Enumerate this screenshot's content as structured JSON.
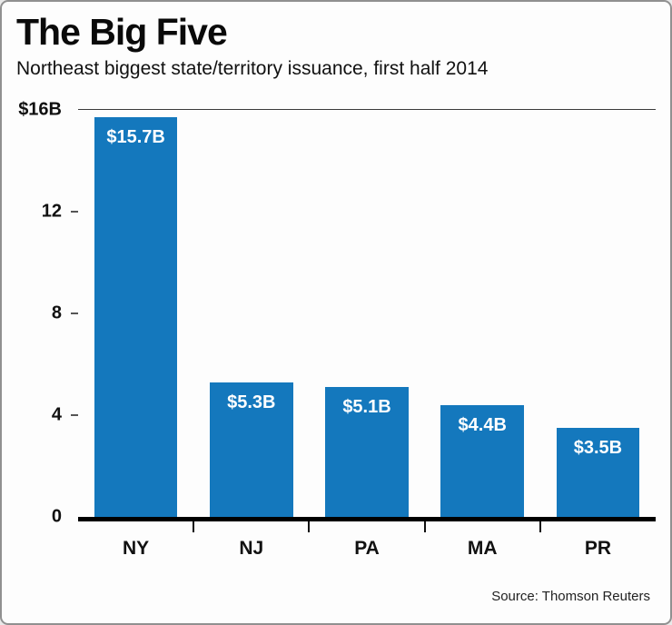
{
  "header": {
    "title": "The Big Five",
    "subtitle": "Northeast biggest state/territory issuance, first half 2014"
  },
  "chart_data": {
    "type": "bar",
    "title": "The Big Five",
    "subtitle": "Northeast biggest state/territory issuance, first half 2014",
    "categories": [
      "NY",
      "NJ",
      "PA",
      "MA",
      "PR"
    ],
    "values": [
      15.7,
      5.3,
      5.1,
      4.4,
      3.5
    ],
    "bar_labels": [
      "$15.7B",
      "$5.3B",
      "$5.1B",
      "$4.4B",
      "$3.5B"
    ],
    "y_ticks": [
      {
        "value": 16,
        "label": "$16B"
      },
      {
        "value": 12,
        "label": "12"
      },
      {
        "value": 8,
        "label": "8"
      },
      {
        "value": 4,
        "label": "4"
      },
      {
        "value": 0,
        "label": "0"
      }
    ],
    "ylim": [
      0,
      16
    ],
    "xlabel": "",
    "ylabel": "",
    "legend": "none",
    "grid": "top-line-and-baseline-only",
    "bar_color": "#1478bd"
  },
  "footer": {
    "source": "Source: Thomson Reuters"
  }
}
